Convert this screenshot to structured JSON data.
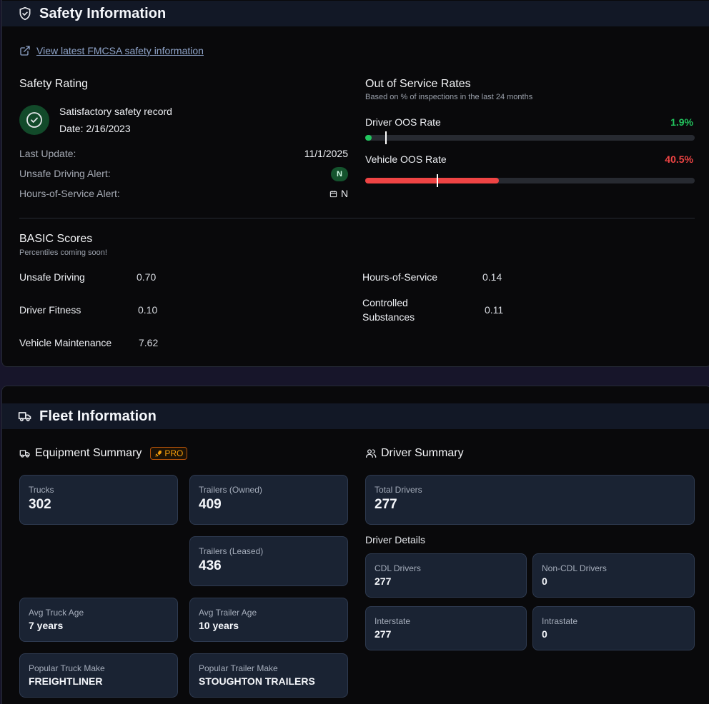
{
  "safety": {
    "title": "Safety Information",
    "link_text": "View latest FMCSA safety information",
    "rating": {
      "title": "Safety Rating",
      "record": "Satisfactory safety record",
      "date": "Date: 2/16/2023",
      "last_update_label": "Last Update:",
      "last_update_value": "11/1/2025",
      "unsafe_alert_label": "Unsafe Driving Alert:",
      "unsafe_alert_value": "N",
      "hos_alert_label": "Hours-of-Service Alert:",
      "hos_alert_value": "N"
    },
    "oos": {
      "title": "Out of Service Rates",
      "subtitle": "Based on % of inspections in the last 24 months",
      "driver": {
        "label": "Driver OOS Rate",
        "value_text": "1.9%",
        "value": 1.9,
        "national_avg": 6.0,
        "color": "#22c55e"
      },
      "vehicle": {
        "label": "Vehicle OOS Rate",
        "value_text": "40.5%",
        "value": 40.5,
        "national_avg": 21.8,
        "color": "#ef4444"
      }
    },
    "basic": {
      "title": "BASIC Scores",
      "subtitle": "Percentiles coming soon!",
      "scores": [
        {
          "label": "Unsafe Driving",
          "value": "0.70"
        },
        {
          "label": "Driver Fitness",
          "value": "0.10"
        },
        {
          "label": "Vehicle Maintenance",
          "value": "7.62"
        },
        {
          "label": "Hours-of-Service",
          "value": "0.14"
        },
        {
          "label": "Controlled Substances",
          "value": "0.11"
        }
      ]
    }
  },
  "fleet": {
    "title": "Fleet Information",
    "equipment": {
      "title": "Equipment Summary",
      "pro_label": "PRO",
      "trucks": {
        "label": "Trucks",
        "value": "302"
      },
      "trailers_owned": {
        "label": "Trailers (Owned)",
        "value": "409"
      },
      "trailers_leased": {
        "label": "Trailers (Leased)",
        "value": "436"
      },
      "avg_truck_age": {
        "label": "Avg Truck Age",
        "value": "7 years"
      },
      "avg_trailer_age": {
        "label": "Avg Trailer Age",
        "value": "10 years"
      },
      "popular_truck_make": {
        "label": "Popular Truck Make",
        "value": "FREIGHTLINER"
      },
      "popular_trailer_make": {
        "label": "Popular Trailer Make",
        "value": "STOUGHTON TRAILERS"
      }
    },
    "drivers": {
      "title": "Driver Summary",
      "total": {
        "label": "Total Drivers",
        "value": "277"
      },
      "details_title": "Driver Details",
      "cdl": {
        "label": "CDL Drivers",
        "value": "277"
      },
      "non_cdl": {
        "label": "Non-CDL Drivers",
        "value": "0"
      },
      "interstate": {
        "label": "Interstate",
        "value": "277"
      },
      "intrastate": {
        "label": "Intrastate",
        "value": "0"
      }
    }
  }
}
